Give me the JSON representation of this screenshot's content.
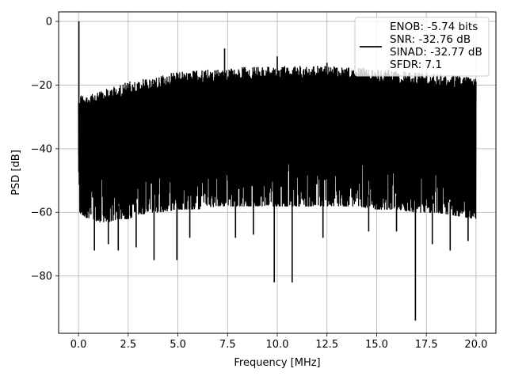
{
  "chart_data": {
    "type": "line",
    "xlabel": "Frequency [MHz]",
    "ylabel": "PSD [dB]",
    "xlim": [
      -1.0,
      21.0
    ],
    "ylim": [
      -98,
      3
    ],
    "xticks": [
      0.0,
      2.5,
      5.0,
      7.5,
      10.0,
      12.5,
      15.0,
      17.5,
      20.0
    ],
    "xtick_labels": [
      "0.0",
      "2.5",
      "5.0",
      "7.5",
      "10.0",
      "12.5",
      "15.0",
      "17.5",
      "20.0"
    ],
    "yticks": [
      0,
      -20,
      -40,
      -60,
      -80
    ],
    "ytick_labels": [
      "0",
      "−20",
      "−40",
      "−60",
      "−80"
    ],
    "grid": true,
    "legend_position": "top-right",
    "line_color": "#000000",
    "series": [
      {
        "legend_lines": [
          "ENOB: -5.74 bits",
          "SNR: -32.76 dB",
          "SINAD: -32.77 dB",
          "SFDR: 7.1"
        ],
        "envelope": {
          "x": [
            0.0,
            0.5,
            1.0,
            1.5,
            2.0,
            2.5,
            3.0,
            3.5,
            4.0,
            5.0,
            6.0,
            7.0,
            8.0,
            9.0,
            10.0,
            11.0,
            12.0,
            13.0,
            14.0,
            15.0,
            16.0,
            17.0,
            18.0,
            19.0,
            20.0
          ],
          "upper": [
            -23,
            -23,
            -22,
            -21,
            -20,
            -19,
            -18.5,
            -18,
            -17,
            -16,
            -15.5,
            -15,
            -14.5,
            -14,
            -14,
            -14,
            -14,
            -14,
            -14.5,
            -15,
            -15.5,
            -16,
            -16.5,
            -17,
            -17
          ],
          "lower": [
            -60,
            -62,
            -63,
            -63,
            -62,
            -62,
            -61,
            -60,
            -60,
            -59,
            -59,
            -58,
            -58,
            -58,
            -58,
            -58,
            -58,
            -58,
            -58,
            -59,
            -59,
            -60,
            -60,
            -61,
            -62
          ]
        },
        "peaks": [
          {
            "x": 0.02,
            "y": 0.0
          },
          {
            "x": 7.35,
            "y": -8.5
          },
          {
            "x": 10.0,
            "y": -11
          },
          {
            "x": 12.5,
            "y": -13
          }
        ],
        "dips": [
          {
            "x": 0.8,
            "y": -72
          },
          {
            "x": 1.5,
            "y": -70
          },
          {
            "x": 2.0,
            "y": -72
          },
          {
            "x": 2.9,
            "y": -71
          },
          {
            "x": 3.8,
            "y": -75
          },
          {
            "x": 4.95,
            "y": -75
          },
          {
            "x": 5.6,
            "y": -68
          },
          {
            "x": 7.9,
            "y": -68
          },
          {
            "x": 8.8,
            "y": -67
          },
          {
            "x": 9.85,
            "y": -82
          },
          {
            "x": 10.75,
            "y": -82
          },
          {
            "x": 12.3,
            "y": -68
          },
          {
            "x": 14.6,
            "y": -66
          },
          {
            "x": 16.0,
            "y": -66
          },
          {
            "x": 16.95,
            "y": -94
          },
          {
            "x": 17.8,
            "y": -70
          },
          {
            "x": 18.7,
            "y": -72
          },
          {
            "x": 19.6,
            "y": -69
          }
        ]
      }
    ]
  }
}
